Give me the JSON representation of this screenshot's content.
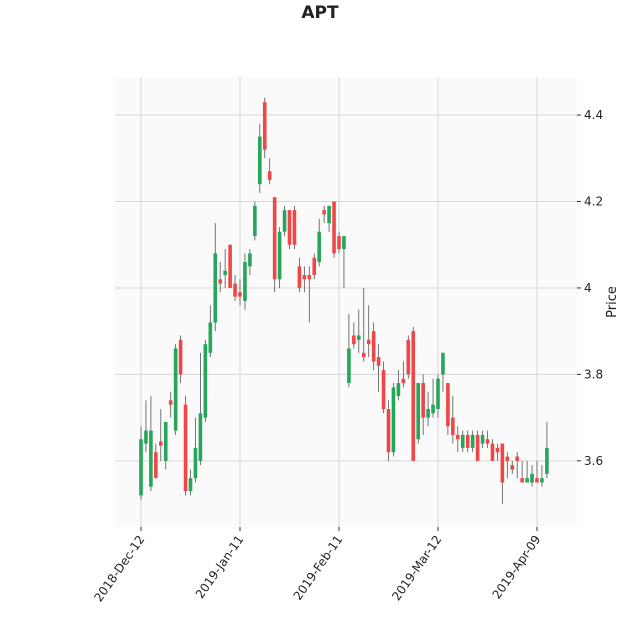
{
  "chart_data": {
    "type": "candlestick",
    "title": "APT",
    "ylabel": "Price",
    "categories": [
      "2018-Dec-12",
      null,
      null,
      null,
      null,
      null,
      null,
      null,
      null,
      null,
      null,
      null,
      null,
      null,
      null,
      null,
      null,
      null,
      null,
      null,
      "2019-Jan-11",
      null,
      null,
      null,
      null,
      null,
      null,
      null,
      null,
      null,
      null,
      null,
      null,
      null,
      null,
      null,
      null,
      null,
      null,
      null,
      "2019-Feb-11",
      null,
      null,
      null,
      null,
      null,
      null,
      null,
      null,
      null,
      null,
      null,
      null,
      null,
      null,
      null,
      null,
      null,
      null,
      null,
      "2019-Mar-12",
      null,
      null,
      null,
      null,
      null,
      null,
      null,
      null,
      null,
      null,
      null,
      null,
      null,
      null,
      null,
      null,
      null,
      null,
      null,
      "2019-Apr-09",
      null,
      null
    ],
    "open": [
      3.52,
      3.64,
      3.54,
      3.62,
      3.645,
      3.6,
      3.74,
      3.67,
      3.88,
      3.73,
      3.53,
      3.56,
      3.6,
      3.7,
      3.85,
      3.92,
      4.02,
      4.03,
      4.1,
      4.01,
      3.99,
      3.97,
      4.05,
      4.12,
      4.24,
      4.43,
      4.27,
      4.21,
      4.02,
      4.13,
      4.18,
      4.18,
      4.05,
      4.03,
      4.03,
      4.07,
      4.06,
      4.18,
      4.15,
      4.2,
      4.12,
      4.09,
      3.78,
      3.89,
      3.88,
      3.85,
      3.88,
      3.9,
      3.84,
      3.81,
      3.72,
      3.62,
      3.75,
      3.79,
      3.88,
      3.9,
      3.65,
      3.78,
      3.7,
      3.71,
      3.72,
      3.8,
      3.78,
      3.7,
      3.66,
      3.63,
      3.66,
      3.63,
      3.66,
      3.64,
      3.65,
      3.64,
      3.63,
      3.64,
      3.61,
      3.59,
      3.61,
      3.56,
      3.55,
      3.55,
      3.56,
      3.55,
      3.57
    ],
    "high": [
      3.68,
      3.74,
      3.75,
      3.64,
      3.72,
      3.69,
      3.76,
      3.87,
      3.89,
      3.75,
      3.58,
      3.7,
      3.85,
      3.88,
      3.96,
      4.15,
      4.06,
      4.09,
      4.1,
      4.03,
      4.02,
      4.08,
      4.09,
      4.2,
      4.38,
      4.44,
      4.3,
      4.21,
      4.14,
      4.19,
      4.18,
      4.19,
      4.07,
      4.05,
      4.05,
      4.08,
      4.16,
      4.19,
      4.19,
      4.2,
      4.13,
      4.12,
      3.94,
      3.92,
      3.95,
      4.0,
      3.96,
      3.92,
      3.87,
      3.83,
      3.74,
      3.78,
      3.81,
      3.83,
      3.89,
      3.91,
      3.78,
      3.8,
      3.76,
      3.79,
      3.8,
      3.85,
      3.78,
      3.75,
      3.68,
      3.67,
      3.67,
      3.67,
      3.67,
      3.67,
      3.67,
      3.65,
      3.64,
      3.64,
      3.62,
      3.6,
      3.62,
      3.6,
      3.6,
      3.59,
      3.6,
      3.59,
      3.69
    ],
    "low": [
      3.51,
      3.62,
      3.53,
      3.56,
      3.6,
      3.58,
      3.7,
      3.66,
      3.78,
      3.52,
      3.52,
      3.55,
      3.59,
      3.69,
      3.84,
      3.9,
      3.99,
      4.0,
      4.0,
      3.97,
      3.96,
      3.95,
      4.03,
      4.11,
      4.22,
      4.3,
      4.24,
      3.99,
      4.0,
      4.12,
      4.09,
      4.09,
      3.99,
      3.99,
      3.92,
      4.02,
      4.05,
      4.15,
      4.13,
      4.07,
      4.08,
      4.0,
      3.77,
      3.86,
      3.85,
      3.83,
      3.84,
      3.81,
      3.76,
      3.71,
      3.6,
      3.61,
      3.74,
      3.77,
      3.79,
      3.6,
      3.64,
      3.66,
      3.68,
      3.7,
      3.7,
      3.76,
      3.66,
      3.64,
      3.62,
      3.62,
      3.62,
      3.62,
      3.6,
      3.63,
      3.63,
      3.6,
      3.6,
      3.5,
      3.56,
      3.57,
      3.56,
      3.55,
      3.55,
      3.54,
      3.55,
      3.54,
      3.56
    ],
    "close": [
      3.65,
      3.67,
      3.67,
      3.56,
      3.635,
      3.69,
      3.73,
      3.86,
      3.8,
      3.53,
      3.56,
      3.63,
      3.71,
      3.87,
      3.92,
      4.08,
      4.01,
      4.04,
      4.0,
      3.98,
      3.98,
      4.06,
      4.08,
      4.19,
      4.35,
      4.32,
      4.25,
      4.02,
      4.13,
      4.18,
      4.1,
      4.1,
      4.0,
      4.02,
      4.02,
      4.03,
      4.13,
      4.17,
      4.19,
      4.08,
      4.09,
      4.12,
      3.86,
      3.87,
      3.89,
      3.84,
      3.87,
      3.83,
      3.82,
      3.72,
      3.62,
      3.77,
      3.78,
      3.78,
      3.8,
      3.6,
      3.78,
      3.7,
      3.72,
      3.73,
      3.79,
      3.85,
      3.68,
      3.66,
      3.65,
      3.66,
      3.63,
      3.66,
      3.6,
      3.66,
      3.64,
      3.6,
      3.62,
      3.55,
      3.6,
      3.58,
      3.6,
      3.55,
      3.56,
      3.57,
      3.55,
      3.56,
      3.63
    ],
    "up_color": "#26a65b",
    "down_color": "#ef4747",
    "ylim": [
      3.447,
      4.488
    ],
    "yticks": [
      3.6,
      3.8,
      4.0,
      4.2,
      4.4
    ],
    "y_axis_side": "right",
    "grid": true
  }
}
